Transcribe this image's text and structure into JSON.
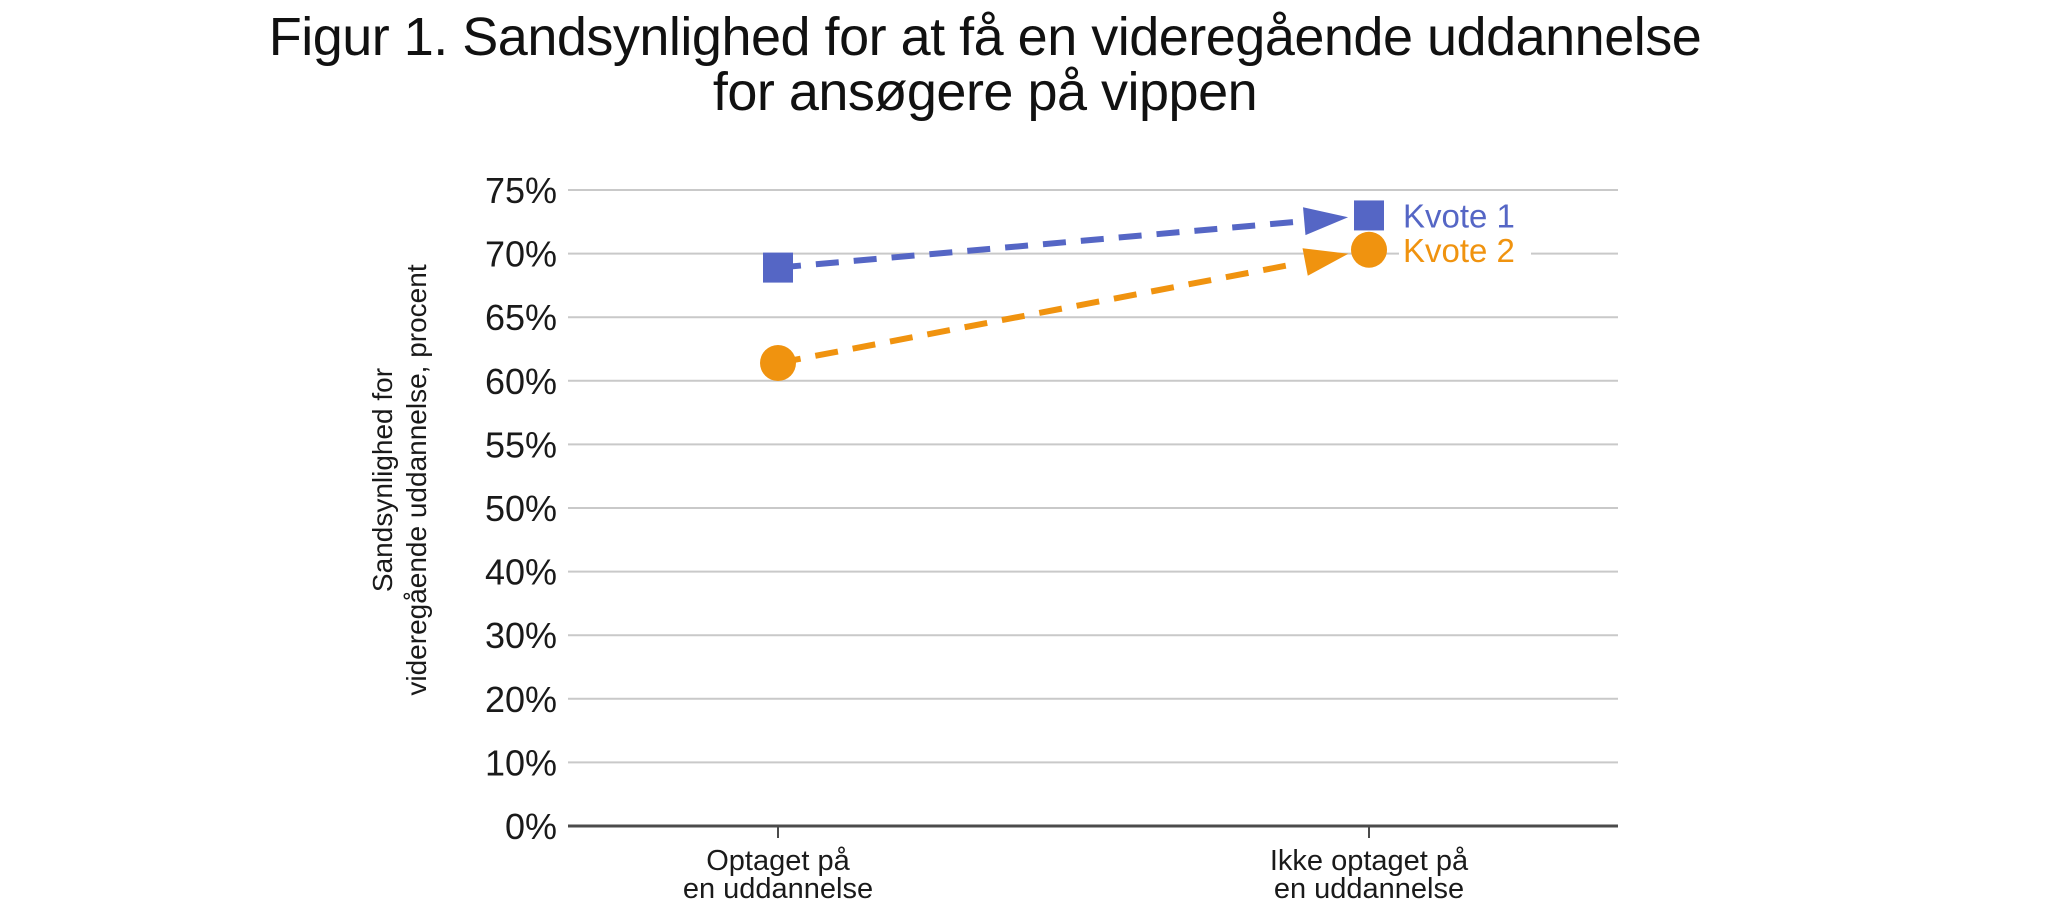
{
  "chart_data": {
    "type": "line",
    "title": "Figur 1. Sandsynlighed for at få en videregående uddannelse for ansøgere på vippen",
    "title_lines": [
      "Figur 1. Sandsynlighed for at få en videregående uddannelse",
      "for ansøgere på vippen"
    ],
    "ylabel": "Sandsynlighed for videregående uddannelse, procent",
    "ylabel_lines": [
      "Sandsynlighed for",
      "videregående uddannelse, procent"
    ],
    "xlabel": "",
    "categories": [
      "Optaget på en uddannelse",
      "Ikke optaget på en uddannelse"
    ],
    "categories_lines": [
      [
        "Optaget på",
        "en uddannelse"
      ],
      [
        "Ikke optaget på",
        "en uddannelse"
      ]
    ],
    "y_tick_labels": [
      "75%",
      "70%",
      "65%",
      "60%",
      "55%",
      "50%",
      "40%",
      "30%",
      "20%",
      "10%",
      "0%"
    ],
    "y_tick_values": [
      75,
      70,
      65,
      60,
      55,
      50,
      40,
      30,
      20,
      10,
      0
    ],
    "y_axis_note": "ticks equally spaced on screen (5-point steps above 50, 10-point steps below)",
    "grid": true,
    "legend_position": "right of end points",
    "line_style": "dashed with arrowhead toward second category",
    "series": [
      {
        "name": "Kvote 1",
        "marker": "square",
        "color": "#5566c5",
        "values": [
          68.9,
          73.0
        ]
      },
      {
        "name": "Kvote 2",
        "marker": "circle",
        "color": "#f0930f",
        "values": [
          61.4,
          70.3
        ]
      }
    ]
  },
  "colors": {
    "grid": "#c9c9c9",
    "axis": "#4b4b4b",
    "tick_text": "#1a1a1a",
    "title_text": "#111111",
    "background": "#ffffff"
  }
}
